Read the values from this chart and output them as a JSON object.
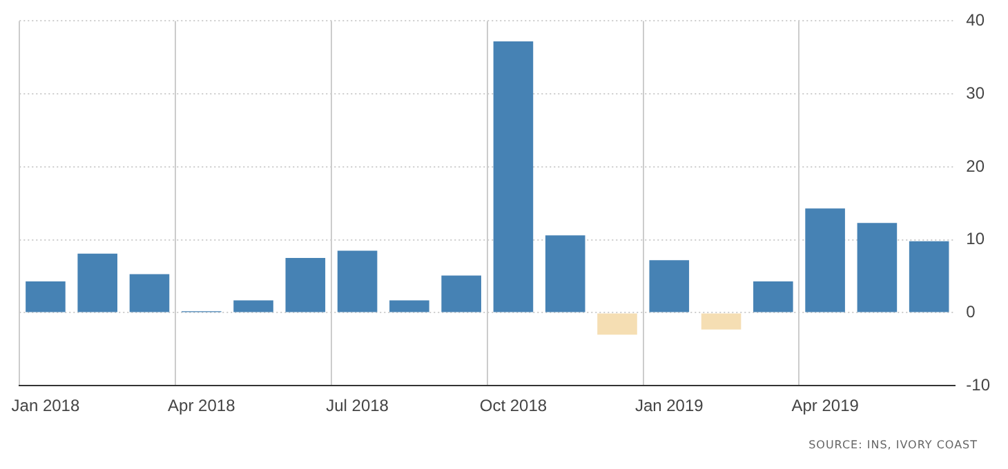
{
  "chart_data": {
    "type": "bar",
    "categories": [
      "Jan 2018",
      null,
      null,
      "Apr 2018",
      null,
      null,
      "Jul 2018",
      null,
      null,
      "Oct 2018",
      null,
      null,
      "Jan 2019",
      null,
      null,
      "Apr 2019",
      null,
      null
    ],
    "values": [
      4.3,
      8.1,
      5.3,
      0.2,
      1.7,
      7.5,
      8.5,
      1.7,
      5.1,
      37.2,
      10.6,
      -3.0,
      7.2,
      -2.3,
      4.3,
      14.3,
      12.3,
      9.8
    ],
    "colors": [
      "#4682b4",
      "#4682b4",
      "#4682b4",
      "#4682b4",
      "#4682b4",
      "#4682b4",
      "#4682b4",
      "#4682b4",
      "#4682b4",
      "#4682b4",
      "#4682b4",
      "#f5deb3",
      "#4682b4",
      "#f5deb3",
      "#4682b4",
      "#4682b4",
      "#4682b4",
      "#4682b4"
    ],
    "ylim": [
      -10,
      40
    ],
    "yticks": [
      -10,
      0,
      10,
      20,
      30,
      40
    ],
    "grid": true,
    "legend": false,
    "annotations": [
      "SOURCE: INS, IVORY COAST"
    ]
  }
}
